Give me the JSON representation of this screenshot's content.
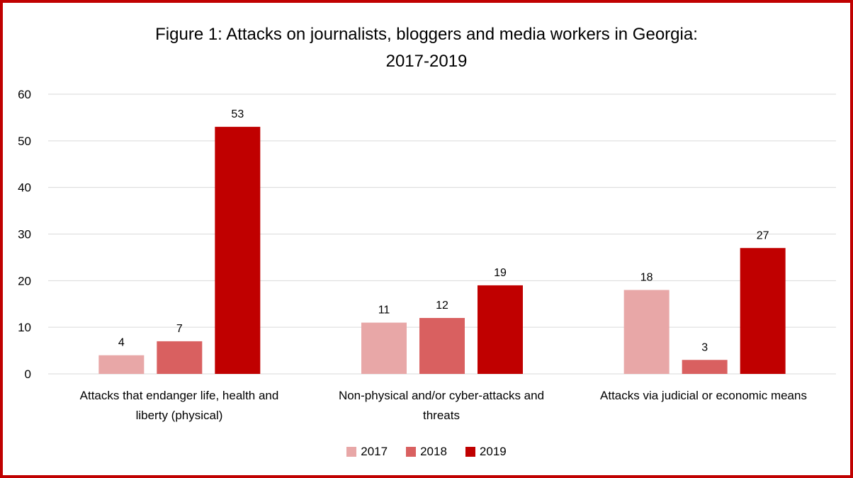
{
  "chart_data": {
    "type": "bar",
    "title_line1": "Figure 1: Attacks on journalists, bloggers and media workers in Georgia:",
    "title_line2": "2017-2019",
    "xlabel": "",
    "ylabel": "",
    "ylim": [
      0,
      60
    ],
    "yticks": [
      "0",
      "10",
      "20",
      "30",
      "40",
      "50",
      "60"
    ],
    "grid": true,
    "legend_position": "bottom",
    "categories": [
      {
        "line1": "Attacks that endanger life, health and",
        "line2": "liberty (physical)"
      },
      {
        "line1": "Non-physical and/or cyber-attacks and",
        "line2": "threats"
      },
      {
        "line1": "Attacks via judicial or economic means",
        "line2": ""
      }
    ],
    "series": [
      {
        "name": "2017",
        "color": "#e8a7a7",
        "values": [
          4,
          11,
          18
        ]
      },
      {
        "name": "2018",
        "color": "#d96060",
        "values": [
          7,
          12,
          3
        ]
      },
      {
        "name": "2019",
        "color": "#c00000",
        "values": [
          53,
          19,
          27
        ]
      }
    ]
  },
  "frame_color": "#c00000",
  "gridline_color": "#d9d9d9"
}
